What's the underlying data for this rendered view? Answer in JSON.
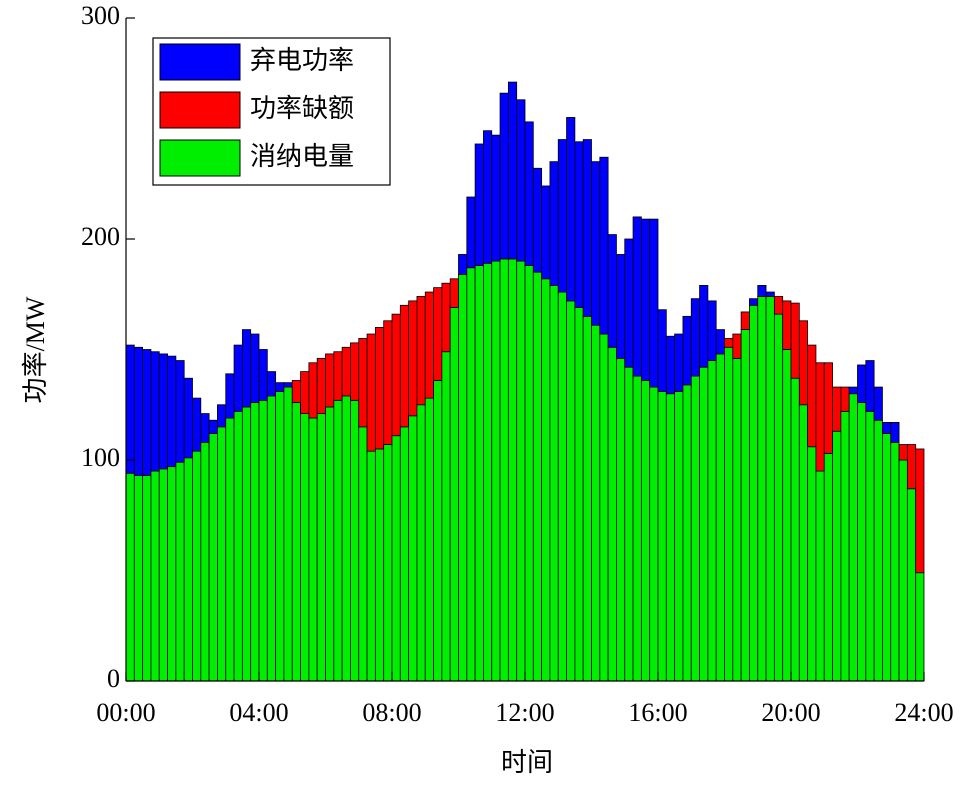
{
  "chart_data": {
    "type": "stacked_bar",
    "xlabel": "时间",
    "ylabel": "功率/MW",
    "legend": "upper left",
    "xlim": [
      0,
      24
    ],
    "xticks": [
      {
        "value": 0,
        "label": "00:00"
      },
      {
        "value": 4,
        "label": "04:00"
      },
      {
        "value": 8,
        "label": "08:00"
      },
      {
        "value": 12,
        "label": "12:00"
      },
      {
        "value": 16,
        "label": "16:00"
      },
      {
        "value": 20,
        "label": "20:00"
      },
      {
        "value": 24,
        "label": "24:00"
      }
    ],
    "ylim": [
      0,
      300
    ],
    "yticks": [
      0,
      100,
      200,
      300
    ],
    "x": [
      0,
      0.25,
      0.5,
      0.75,
      1,
      1.25,
      1.5,
      1.75,
      2,
      2.25,
      2.5,
      2.75,
      3,
      3.25,
      3.5,
      3.75,
      4,
      4.25,
      4.5,
      4.75,
      5,
      5.25,
      5.5,
      5.75,
      6,
      6.25,
      6.5,
      6.75,
      7,
      7.25,
      7.5,
      7.75,
      8,
      8.25,
      8.5,
      8.75,
      9,
      9.25,
      9.5,
      9.75,
      10,
      10.25,
      10.5,
      10.75,
      11,
      11.25,
      11.5,
      11.75,
      12,
      12.25,
      12.5,
      12.75,
      13,
      13.25,
      13.5,
      13.75,
      14,
      14.25,
      14.5,
      14.75,
      15,
      15.25,
      15.5,
      15.75,
      16,
      16.25,
      16.5,
      16.75,
      17,
      17.25,
      17.5,
      17.75,
      18,
      18.25,
      18.5,
      18.75,
      19,
      19.25,
      19.5,
      19.75,
      20,
      20.25,
      20.5,
      20.75,
      21,
      21.25,
      21.5,
      21.75,
      22,
      22.25,
      22.5,
      22.75,
      23,
      23.25,
      23.5,
      23.75
    ],
    "series": [
      {
        "name": "弃电功率",
        "color": "#0000ff",
        "values": [
          58,
          58,
          57,
          54,
          52,
          50,
          46,
          36,
          24,
          13,
          6,
          10,
          20,
          30,
          35,
          31,
          23,
          11,
          4,
          2,
          0,
          0,
          0,
          0,
          0,
          0,
          0,
          0,
          0,
          0,
          0,
          0,
          0,
          0,
          0,
          0,
          0,
          0,
          0,
          0,
          9,
          32,
          55,
          60,
          57,
          75,
          80,
          73,
          65,
          47,
          42,
          56,
          69,
          83,
          75,
          80,
          74,
          80,
          51,
          47,
          58,
          72,
          73,
          76,
          37,
          26,
          26,
          31,
          35,
          37,
          27,
          11,
          0,
          0,
          0,
          3,
          5,
          2,
          0,
          0,
          0,
          0,
          0,
          0,
          0,
          0,
          0,
          3,
          17,
          23,
          15,
          5,
          9,
          0,
          0,
          0
        ]
      },
      {
        "name": "功率缺额",
        "color": "#ff0000",
        "values": [
          0,
          0,
          0,
          0,
          0,
          0,
          0,
          0,
          0,
          0,
          0,
          0,
          0,
          0,
          0,
          0,
          0,
          0,
          0,
          0,
          10,
          19,
          25,
          25,
          24,
          22,
          22,
          26,
          40,
          53,
          55,
          56,
          55,
          55,
          52,
          49,
          48,
          42,
          31,
          13,
          0,
          0,
          0,
          0,
          0,
          0,
          0,
          0,
          0,
          0,
          0,
          0,
          0,
          0,
          0,
          0,
          0,
          0,
          0,
          0,
          0,
          0,
          0,
          0,
          0,
          0,
          0,
          0,
          0,
          0,
          0,
          0,
          4,
          11,
          8,
          0,
          0,
          0,
          8,
          22,
          34,
          38,
          46,
          49,
          41,
          20,
          11,
          0,
          0,
          0,
          0,
          0,
          0,
          7,
          20,
          56
        ]
      },
      {
        "name": "消纳电量",
        "color": "#00ee00",
        "values": [
          94,
          93,
          93,
          95,
          96,
          97,
          99,
          101,
          104,
          108,
          112,
          115,
          119,
          122,
          124,
          126,
          127,
          129,
          131,
          133,
          126,
          121,
          119,
          121,
          124,
          127,
          129,
          127,
          115,
          104,
          105,
          107,
          111,
          115,
          120,
          125,
          128,
          136,
          149,
          169,
          184,
          187,
          188,
          189,
          190,
          191,
          191,
          190,
          188,
          185,
          182,
          179,
          176,
          172,
          169,
          165,
          161,
          157,
          151,
          146,
          142,
          138,
          136,
          133,
          131,
          130,
          131,
          134,
          138,
          142,
          145,
          148,
          151,
          146,
          159,
          170,
          174,
          174,
          166,
          150,
          137,
          125,
          106,
          95,
          103,
          113,
          122,
          130,
          126,
          122,
          118,
          112,
          108,
          100,
          87,
          49
        ]
      }
    ]
  }
}
